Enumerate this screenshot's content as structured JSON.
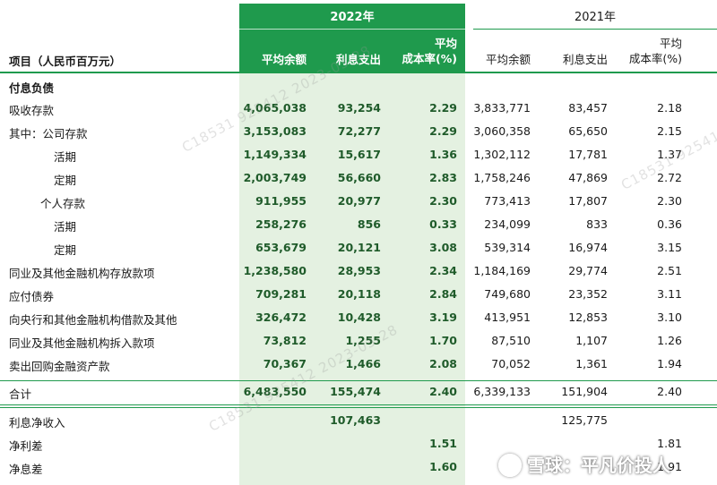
{
  "header": {
    "col_label": "项目（人民币百万元）",
    "year_2022": "2022年",
    "year_2021": "2021年",
    "avg_balance": "平均余额",
    "interest_expense": "利息支出",
    "rate_line1": "平均",
    "rate_line2": "成本率(%)"
  },
  "section_title": "付息负债",
  "rows": [
    {
      "label": "吸收存款",
      "v": [
        "4,065,038",
        "93,254",
        "2.29",
        "3,833,771",
        "83,457",
        "2.18"
      ]
    },
    {
      "label": "其中：公司存款",
      "v": [
        "3,153,083",
        "72,277",
        "2.29",
        "3,060,358",
        "65,650",
        "2.15"
      ]
    },
    {
      "label": "活期",
      "v": [
        "1,149,334",
        "15,617",
        "1.36",
        "1,302,112",
        "17,781",
        "1.37"
      ]
    },
    {
      "label": "定期",
      "v": [
        "2,003,749",
        "56,660",
        "2.83",
        "1,758,246",
        "47,869",
        "2.72"
      ]
    },
    {
      "label": "个人存款",
      "v": [
        "911,955",
        "20,977",
        "2.30",
        "773,413",
        "17,807",
        "2.30"
      ]
    },
    {
      "label": "活期",
      "v": [
        "258,276",
        "856",
        "0.33",
        "234,099",
        "833",
        "0.36"
      ]
    },
    {
      "label": "定期",
      "v": [
        "653,679",
        "20,121",
        "3.08",
        "539,314",
        "16,974",
        "3.15"
      ]
    },
    {
      "label": "同业及其他金融机构存放款项",
      "v": [
        "1,238,580",
        "28,953",
        "2.34",
        "1,184,169",
        "29,774",
        "2.51"
      ]
    },
    {
      "label": "应付债券",
      "v": [
        "709,281",
        "20,118",
        "2.84",
        "749,680",
        "23,352",
        "3.11"
      ]
    },
    {
      "label": "向央行和其他金融机构借款及其他",
      "v": [
        "326,472",
        "10,428",
        "3.19",
        "413,951",
        "12,853",
        "3.10"
      ]
    },
    {
      "label": "同业及其他金融机构拆入款项",
      "v": [
        "73,812",
        "1,255",
        "1.70",
        "87,510",
        "1,107",
        "1.26"
      ]
    },
    {
      "label": "卖出回购金融资产款",
      "v": [
        "70,367",
        "1,466",
        "2.08",
        "70,052",
        "1,361",
        "1.94"
      ]
    }
  ],
  "total": {
    "label": "合计",
    "v": [
      "6,483,550",
      "155,474",
      "2.40",
      "6,339,133",
      "151,904",
      "2.40"
    ]
  },
  "summary": [
    {
      "label": "利息净收入",
      "v": [
        "",
        "107,463",
        "",
        "",
        "125,775",
        ""
      ]
    },
    {
      "label": "净利差",
      "v": [
        "",
        "",
        "1.51",
        "",
        "",
        "1.81"
      ]
    },
    {
      "label": "净息差",
      "v": [
        "",
        "",
        "1.60",
        "",
        "",
        "1.91"
      ]
    }
  ],
  "watermark_text": "C18531 925412 2023-03-28",
  "brand": "雪球：平凡价投人",
  "colors": {
    "accent_green": "#1f9a4d",
    "light_green": "#e4f1e1"
  }
}
